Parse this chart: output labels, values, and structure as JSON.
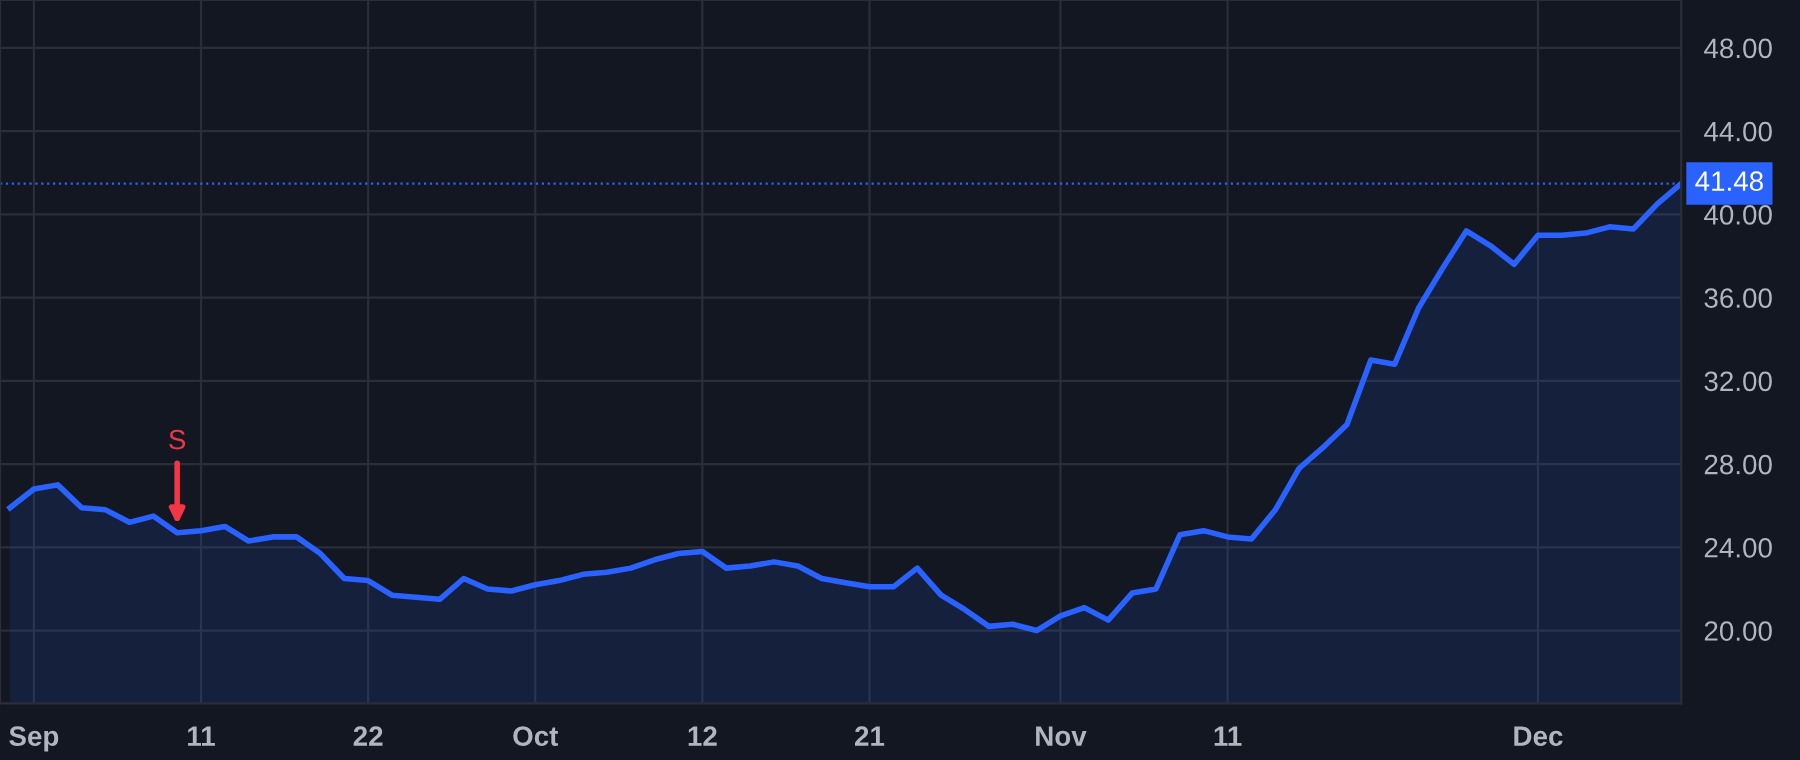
{
  "chart_data": {
    "type": "area",
    "categories": [
      null,
      "Sep",
      null,
      null,
      null,
      null,
      null,
      null,
      "11",
      null,
      null,
      null,
      null,
      null,
      null,
      "22",
      null,
      null,
      null,
      null,
      null,
      null,
      "Oct",
      null,
      null,
      null,
      null,
      null,
      null,
      "12",
      null,
      null,
      null,
      null,
      null,
      null,
      "21",
      null,
      null,
      null,
      null,
      null,
      null,
      null,
      "Nov",
      null,
      null,
      null,
      null,
      null,
      null,
      "11",
      null,
      null,
      null,
      null,
      null,
      null,
      null,
      null,
      null,
      null,
      null,
      null,
      "Dec",
      null,
      null,
      null,
      null,
      null,
      null
    ],
    "series": [
      {
        "color": "#2962ff",
        "values": [
          25.9,
          26.8,
          27.0,
          25.9,
          25.8,
          25.2,
          25.5,
          24.7,
          24.8,
          25.0,
          24.3,
          24.5,
          24.5,
          23.7,
          22.5,
          22.4,
          21.7,
          21.6,
          21.5,
          22.5,
          22.0,
          21.9,
          22.2,
          22.4,
          22.7,
          22.8,
          23.0,
          23.4,
          23.7,
          23.8,
          23.0,
          23.1,
          23.3,
          23.1,
          22.5,
          22.3,
          22.1,
          22.1,
          23.0,
          21.7,
          21.0,
          20.2,
          20.3,
          20.0,
          20.7,
          21.1,
          20.5,
          21.8,
          22.0,
          24.6,
          24.8,
          24.5,
          24.4,
          25.8,
          27.8,
          28.8,
          29.9,
          33.0,
          32.8,
          35.5,
          37.4,
          39.2,
          38.5,
          37.6,
          39.0,
          39.0,
          39.1,
          39.4,
          39.3,
          40.5,
          41.48
        ]
      }
    ],
    "ylim": [
      16.5,
      50.3
    ],
    "yticks": [
      {
        "value": 20,
        "label": "20.00"
      },
      {
        "value": 24,
        "label": "24.00"
      },
      {
        "value": 28,
        "label": "28.00"
      },
      {
        "value": 32,
        "label": "32.00"
      },
      {
        "value": 36,
        "label": "36.00"
      },
      {
        "value": 40,
        "label": "40.00"
      },
      {
        "value": 44,
        "label": "44.00"
      },
      {
        "value": 48,
        "label": "48.00"
      }
    ],
    "ref_lines": [
      {
        "axis": "y",
        "value": 41.48,
        "label": "41.48",
        "color": "#2962ff",
        "line_style": "dotted"
      }
    ],
    "annotations": [
      {
        "text": "S",
        "y": 24.7
      }
    ],
    "grid": true,
    "line_style": "solid"
  }
}
